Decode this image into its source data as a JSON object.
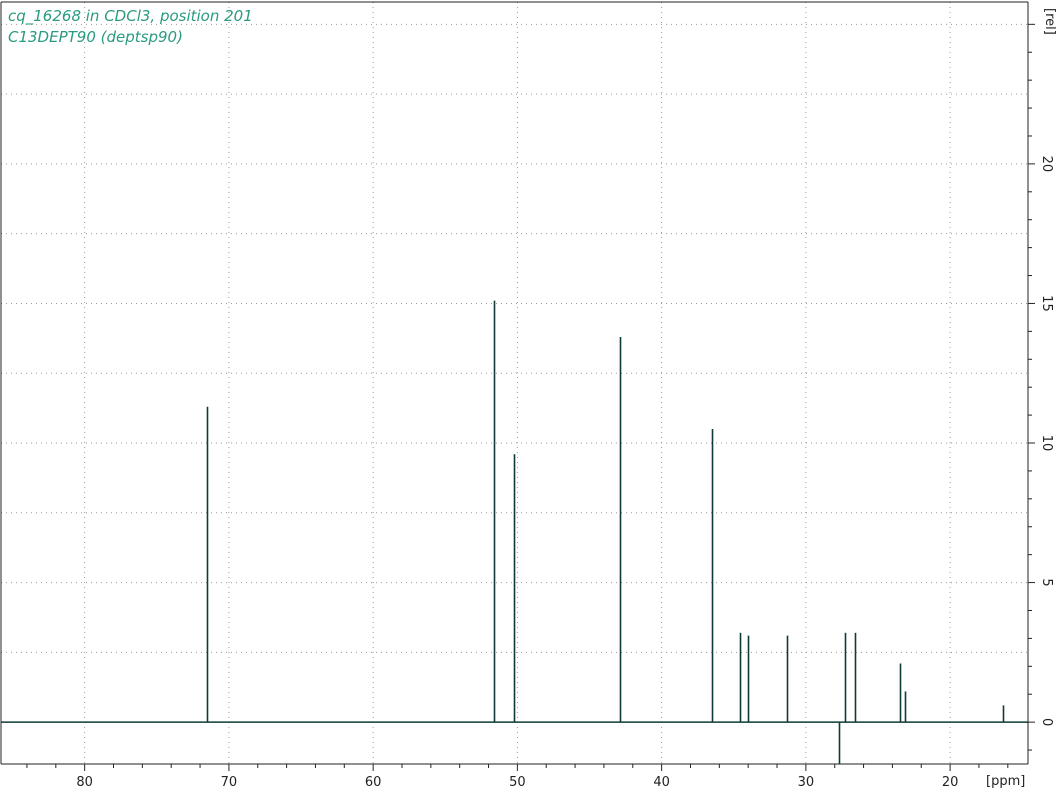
{
  "title_lines": [
    "cq_16268 in CDCl3, position 201",
    "C13DEPT90 (deptsp90)"
  ],
  "colors": {
    "title": "#2a9a80",
    "trace": "#0e3b36",
    "axis": "#222222",
    "grid": "#9a9a9a"
  },
  "chart_data": {
    "type": "line",
    "xlabel": "[ppm]",
    "ylabel": "[rel]",
    "x_reversed": true,
    "xlim": [
      85.8,
      14.6
    ],
    "ylim": [
      -1.5,
      25.8
    ],
    "xticks": [
      80,
      70,
      60,
      50,
      40,
      30,
      20
    ],
    "yticks": [
      0,
      5,
      10,
      15,
      20
    ],
    "grid": true,
    "peaks": [
      {
        "ppm": 71.5,
        "intensity": 11.3
      },
      {
        "ppm": 51.6,
        "intensity": 15.1
      },
      {
        "ppm": 50.2,
        "intensity": 9.6
      },
      {
        "ppm": 42.9,
        "intensity": 13.8
      },
      {
        "ppm": 36.5,
        "intensity": 10.5
      },
      {
        "ppm": 34.6,
        "intensity": 3.2
      },
      {
        "ppm": 34.0,
        "intensity": 3.1
      },
      {
        "ppm": 31.3,
        "intensity": 3.1
      },
      {
        "ppm": 27.7,
        "intensity": -1.5
      },
      {
        "ppm": 27.3,
        "intensity": 3.2
      },
      {
        "ppm": 26.6,
        "intensity": 3.2
      },
      {
        "ppm": 23.5,
        "intensity": 2.1
      },
      {
        "ppm": 23.1,
        "intensity": 1.1
      },
      {
        "ppm": 16.3,
        "intensity": 0.6
      }
    ]
  }
}
